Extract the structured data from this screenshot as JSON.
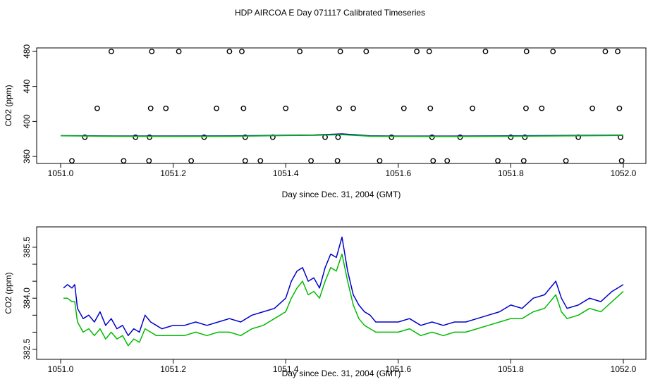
{
  "title": "HDP AIRCOA E  Day 071117  Calibrated Timeseries",
  "colors": {
    "blue": "#0000cc",
    "green": "#00bb00",
    "axis": "#000000"
  },
  "chart_data": [
    {
      "type": "line",
      "name": "top-panel",
      "xlabel": "Day since Dec. 31, 2004 (GMT)",
      "ylabel": "CO2 (ppm)",
      "xlim": [
        1051.0,
        1052.0
      ],
      "ylim": [
        352,
        484
      ],
      "xticks": [
        1051.0,
        1051.2,
        1051.4,
        1051.6,
        1051.8,
        1052.0
      ],
      "xtick_labels": [
        "1051.0",
        "1051.2",
        "1051.4",
        "1051.6",
        "1051.8",
        "1052.0"
      ],
      "yticks": [
        360,
        400,
        440,
        480
      ],
      "ytick_labels": [
        "360",
        "400",
        "440",
        "480"
      ],
      "series": [
        {
          "name": "calibration-points",
          "style": "open-circle",
          "points": [
            [
              1051.09,
              480
            ],
            [
              1051.162,
              480
            ],
            [
              1051.21,
              480
            ],
            [
              1051.3,
              480
            ],
            [
              1051.322,
              480
            ],
            [
              1051.425,
              480
            ],
            [
              1051.497,
              480
            ],
            [
              1051.543,
              480
            ],
            [
              1051.633,
              480
            ],
            [
              1051.655,
              480
            ],
            [
              1051.755,
              480
            ],
            [
              1051.828,
              480
            ],
            [
              1051.875,
              480
            ],
            [
              1051.968,
              480
            ],
            [
              1051.99,
              480
            ],
            [
              1051.065,
              415
            ],
            [
              1051.16,
              415
            ],
            [
              1051.187,
              415
            ],
            [
              1051.277,
              415
            ],
            [
              1051.325,
              415
            ],
            [
              1051.4,
              415
            ],
            [
              1051.495,
              415
            ],
            [
              1051.52,
              415
            ],
            [
              1051.61,
              415
            ],
            [
              1051.657,
              415
            ],
            [
              1051.732,
              415
            ],
            [
              1051.827,
              415
            ],
            [
              1051.855,
              415
            ],
            [
              1051.945,
              415
            ],
            [
              1051.993,
              415
            ],
            [
              1051.043,
              382
            ],
            [
              1051.133,
              382
            ],
            [
              1051.158,
              382
            ],
            [
              1051.255,
              382
            ],
            [
              1051.328,
              382
            ],
            [
              1051.377,
              382
            ],
            [
              1051.47,
              382
            ],
            [
              1051.493,
              382
            ],
            [
              1051.588,
              382
            ],
            [
              1051.66,
              382
            ],
            [
              1051.71,
              382
            ],
            [
              1051.8,
              382
            ],
            [
              1051.825,
              382
            ],
            [
              1051.92,
              382
            ],
            [
              1051.995,
              382
            ],
            [
              1051.02,
              355
            ],
            [
              1051.112,
              355
            ],
            [
              1051.157,
              355
            ],
            [
              1051.232,
              355
            ],
            [
              1051.328,
              355
            ],
            [
              1051.355,
              355
            ],
            [
              1051.445,
              355
            ],
            [
              1051.492,
              355
            ],
            [
              1051.567,
              355
            ],
            [
              1051.662,
              355
            ],
            [
              1051.687,
              355
            ],
            [
              1051.777,
              355
            ],
            [
              1051.823,
              355
            ],
            [
              1051.898,
              355
            ],
            [
              1051.997,
              355
            ]
          ]
        },
        {
          "name": "blue-series",
          "color": "#0000cc",
          "x": [
            1051.0,
            1051.1,
            1051.2,
            1051.3,
            1051.4,
            1051.45,
            1051.5,
            1051.55,
            1051.6,
            1051.7,
            1051.8,
            1051.9,
            1052.0
          ],
          "values": [
            383.8,
            383.4,
            383.4,
            383.5,
            384.3,
            384.5,
            385.8,
            383.6,
            383.3,
            383.3,
            383.6,
            384.0,
            384.4
          ]
        },
        {
          "name": "green-series",
          "color": "#00bb00",
          "x": [
            1051.0,
            1051.1,
            1051.2,
            1051.3,
            1051.4,
            1051.45,
            1051.5,
            1051.55,
            1051.6,
            1051.7,
            1051.8,
            1051.9,
            1052.0
          ],
          "values": [
            383.6,
            383.0,
            382.9,
            383.0,
            383.9,
            384.1,
            384.9,
            383.1,
            382.9,
            382.8,
            383.1,
            383.5,
            384.0
          ]
        }
      ]
    },
    {
      "type": "line",
      "name": "bottom-panel",
      "xlabel": "Day since Dec. 31, 2004 (GMT)",
      "ylabel": "CO2 (ppm)",
      "xlim": [
        1051.0,
        1052.0
      ],
      "ylim": [
        382.2,
        386.1
      ],
      "xticks": [
        1051.0,
        1051.2,
        1051.4,
        1051.6,
        1051.8,
        1052.0
      ],
      "xtick_labels": [
        "1051.0",
        "1051.2",
        "1051.4",
        "1051.6",
        "1051.8",
        "1052.0"
      ],
      "yticks": [
        382.5,
        383.0,
        383.5,
        384.0,
        384.5,
        385.0,
        385.5
      ],
      "ytick_labels": [
        "382.5",
        "",
        "",
        "384.0",
        "",
        "",
        "385.5"
      ],
      "series": [
        {
          "name": "blue-series",
          "color": "#0000cc",
          "x": [
            1051.005,
            1051.012,
            1051.02,
            1051.025,
            1051.03,
            1051.04,
            1051.05,
            1051.06,
            1051.07,
            1051.08,
            1051.09,
            1051.1,
            1051.11,
            1051.12,
            1051.13,
            1051.14,
            1051.15,
            1051.16,
            1051.17,
            1051.18,
            1051.2,
            1051.22,
            1051.24,
            1051.26,
            1051.28,
            1051.3,
            1051.32,
            1051.34,
            1051.36,
            1051.38,
            1051.4,
            1051.41,
            1051.42,
            1051.43,
            1051.44,
            1051.45,
            1051.46,
            1051.47,
            1051.48,
            1051.49,
            1051.5,
            1051.51,
            1051.52,
            1051.53,
            1051.54,
            1051.55,
            1051.56,
            1051.58,
            1051.6,
            1051.62,
            1051.64,
            1051.66,
            1051.68,
            1051.7,
            1051.72,
            1051.74,
            1051.76,
            1051.78,
            1051.8,
            1051.82,
            1051.84,
            1051.86,
            1051.88,
            1051.89,
            1051.9,
            1051.92,
            1051.94,
            1051.96,
            1051.98,
            1052.0
          ],
          "values": [
            384.3,
            384.4,
            384.3,
            384.4,
            383.7,
            383.4,
            383.5,
            383.3,
            383.6,
            383.2,
            383.4,
            383.1,
            383.2,
            382.9,
            383.1,
            383.0,
            383.5,
            383.3,
            383.2,
            383.1,
            383.2,
            383.2,
            383.3,
            383.2,
            383.3,
            383.4,
            383.3,
            383.5,
            383.6,
            383.7,
            384.0,
            384.5,
            384.8,
            384.9,
            384.5,
            384.6,
            384.3,
            384.9,
            385.3,
            385.2,
            385.8,
            384.8,
            384.1,
            383.8,
            383.6,
            383.5,
            383.3,
            383.3,
            383.3,
            383.4,
            383.2,
            383.3,
            383.2,
            383.3,
            383.3,
            383.4,
            383.5,
            383.6,
            383.8,
            383.7,
            384.0,
            384.1,
            384.5,
            384.0,
            383.7,
            383.8,
            384.0,
            383.9,
            384.2,
            384.4
          ]
        },
        {
          "name": "green-series",
          "color": "#00bb00",
          "x": [
            1051.005,
            1051.012,
            1051.02,
            1051.025,
            1051.03,
            1051.04,
            1051.05,
            1051.06,
            1051.07,
            1051.08,
            1051.09,
            1051.1,
            1051.11,
            1051.12,
            1051.13,
            1051.14,
            1051.15,
            1051.16,
            1051.17,
            1051.18,
            1051.2,
            1051.22,
            1051.24,
            1051.26,
            1051.28,
            1051.3,
            1051.32,
            1051.34,
            1051.36,
            1051.38,
            1051.4,
            1051.41,
            1051.42,
            1051.43,
            1051.44,
            1051.45,
            1051.46,
            1051.47,
            1051.48,
            1051.49,
            1051.5,
            1051.51,
            1051.52,
            1051.53,
            1051.54,
            1051.55,
            1051.56,
            1051.58,
            1051.6,
            1051.62,
            1051.64,
            1051.66,
            1051.68,
            1051.7,
            1051.72,
            1051.74,
            1051.76,
            1051.78,
            1051.8,
            1051.82,
            1051.84,
            1051.86,
            1051.88,
            1051.89,
            1051.9,
            1051.92,
            1051.94,
            1051.96,
            1051.98,
            1052.0
          ],
          "values": [
            384.0,
            384.0,
            383.9,
            383.9,
            383.3,
            383.0,
            383.1,
            382.9,
            383.1,
            382.8,
            383.0,
            382.8,
            382.9,
            382.6,
            382.8,
            382.7,
            383.1,
            383.0,
            382.9,
            382.9,
            382.9,
            382.9,
            383.0,
            382.9,
            383.0,
            383.0,
            382.9,
            383.1,
            383.2,
            383.4,
            383.6,
            384.0,
            384.3,
            384.5,
            384.1,
            384.2,
            384.0,
            384.5,
            384.9,
            384.8,
            385.3,
            384.5,
            383.8,
            383.4,
            383.2,
            383.1,
            383.0,
            383.0,
            383.0,
            383.1,
            382.9,
            383.0,
            382.9,
            383.0,
            383.0,
            383.1,
            383.2,
            383.3,
            383.4,
            383.4,
            383.6,
            383.7,
            384.1,
            383.6,
            383.4,
            383.5,
            383.7,
            383.6,
            383.9,
            384.2
          ]
        }
      ]
    }
  ]
}
